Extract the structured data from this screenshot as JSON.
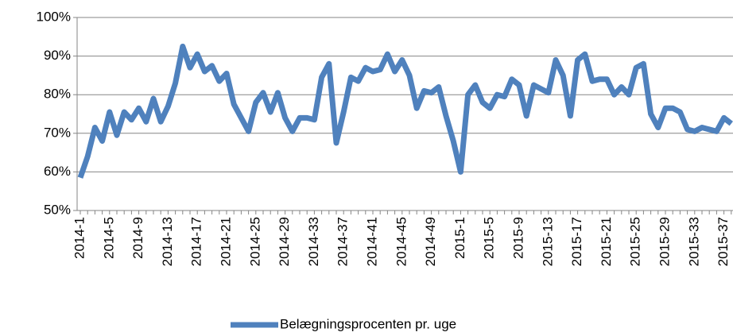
{
  "chart_data": {
    "type": "line",
    "categories": [
      "2014-1",
      null,
      null,
      null,
      "2014-5",
      null,
      null,
      null,
      "2014-9",
      null,
      null,
      null,
      "2014-13",
      null,
      null,
      null,
      "2014-17",
      null,
      null,
      null,
      "2014-21",
      null,
      null,
      null,
      "2014-25",
      null,
      null,
      null,
      "2014-29",
      null,
      null,
      null,
      "2014-33",
      null,
      null,
      null,
      "2014-37",
      null,
      null,
      null,
      "2014-41",
      null,
      null,
      null,
      "2014-45",
      null,
      null,
      null,
      "2014-49",
      null,
      null,
      null,
      "2015-1",
      null,
      null,
      null,
      "2015-5",
      null,
      null,
      null,
      "2015-9",
      null,
      null,
      null,
      "2015-13",
      null,
      null,
      null,
      "2015-17",
      null,
      null,
      null,
      "2015-21",
      null,
      null,
      null,
      "2015-25",
      null,
      null,
      null,
      "2015-29",
      null,
      null,
      null,
      "2015-33",
      null,
      null,
      null,
      "2015-37",
      null
    ],
    "series": [
      {
        "name": "Belægningsprocenten pr. uge",
        "color": "#4f81bd",
        "values": [
          58.5,
          64,
          71.5,
          68,
          75.5,
          69.5,
          75.5,
          73.5,
          76.5,
          73,
          79,
          73,
          77,
          83,
          92.5,
          87,
          90.5,
          86,
          87.5,
          83.5,
          85.5,
          77.5,
          74,
          70.5,
          78,
          80.5,
          75.5,
          80.5,
          74,
          70.5,
          74,
          74,
          73.5,
          84.5,
          88,
          67.5,
          75.5,
          84.5,
          83.5,
          87,
          86,
          86.5,
          90.5,
          86,
          89,
          85,
          76.5,
          81,
          80.5,
          82,
          74.5,
          68,
          60,
          80,
          82.5,
          78,
          76.5,
          80,
          79.5,
          84,
          82.5,
          74.5,
          82.5,
          81.5,
          80.5,
          89,
          85,
          74.5,
          89,
          90.5,
          83.5,
          84,
          84,
          80,
          82,
          80,
          87,
          88,
          75,
          71.5,
          76.5,
          76.5,
          75.5,
          71,
          70.5,
          71.5,
          71,
          70.5,
          74,
          72.5
        ]
      }
    ],
    "ylim": [
      50,
      100
    ],
    "yticks": [
      {
        "value": 50,
        "label": "50%"
      },
      {
        "value": 60,
        "label": "60%"
      },
      {
        "value": 70,
        "label": "70%"
      },
      {
        "value": 80,
        "label": "80%"
      },
      {
        "value": 90,
        "label": "90%"
      },
      {
        "value": 100,
        "label": "100%"
      }
    ],
    "grid": true,
    "legend": "bottom"
  }
}
